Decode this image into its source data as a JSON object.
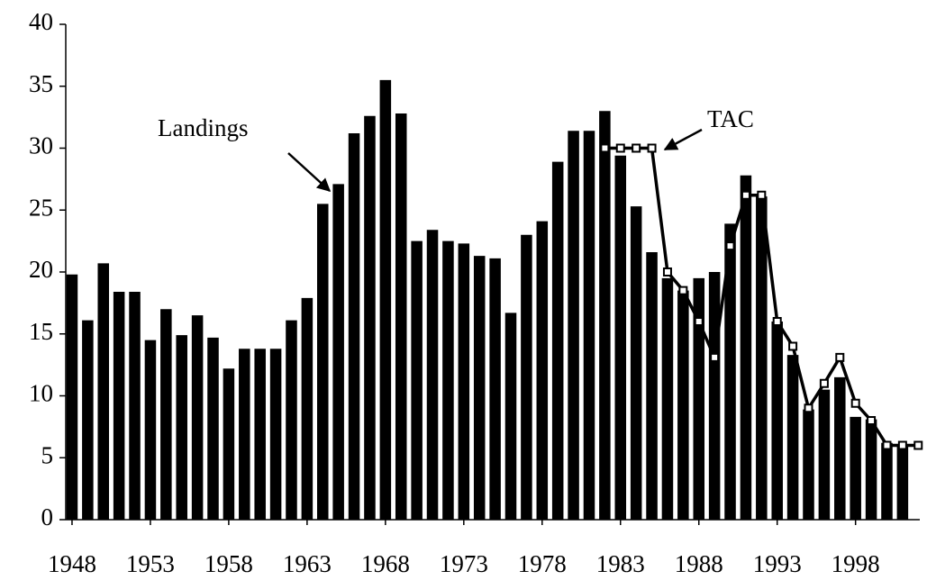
{
  "chart_data": {
    "type": "bar",
    "x": [
      1948,
      1949,
      1950,
      1951,
      1952,
      1953,
      1954,
      1955,
      1956,
      1957,
      1958,
      1959,
      1960,
      1961,
      1962,
      1963,
      1964,
      1965,
      1966,
      1967,
      1968,
      1969,
      1970,
      1971,
      1972,
      1973,
      1974,
      1975,
      1976,
      1977,
      1978,
      1979,
      1980,
      1981,
      1982,
      1983,
      1984,
      1985,
      1986,
      1987,
      1988,
      1989,
      1990,
      1991,
      1992,
      1993,
      1994,
      1995,
      1996,
      1997,
      1998,
      1999,
      2000,
      2001,
      2002
    ],
    "series": [
      {
        "name": "Landings",
        "type": "bar",
        "color": "#000000",
        "values": [
          19.8,
          16.1,
          20.7,
          18.4,
          18.4,
          14.5,
          17.0,
          14.9,
          16.5,
          14.7,
          12.2,
          13.8,
          13.8,
          13.8,
          16.1,
          17.9,
          25.5,
          27.1,
          31.2,
          32.6,
          35.5,
          32.8,
          22.5,
          23.4,
          22.5,
          22.3,
          21.3,
          21.1,
          16.7,
          23.0,
          24.1,
          28.9,
          31.4,
          31.4,
          33.0,
          29.4,
          25.3,
          21.6,
          19.5,
          18.5,
          19.5,
          20.0,
          23.9,
          27.8,
          26.1,
          16.0,
          13.3,
          8.9,
          10.5,
          11.5,
          8.3,
          8.1,
          6.2,
          6.0,
          null
        ]
      },
      {
        "name": "TAC",
        "type": "line",
        "color": "#000000",
        "values": [
          null,
          null,
          null,
          null,
          null,
          null,
          null,
          null,
          null,
          null,
          null,
          null,
          null,
          null,
          null,
          null,
          null,
          null,
          null,
          null,
          null,
          null,
          null,
          null,
          null,
          null,
          null,
          null,
          null,
          null,
          null,
          null,
          null,
          null,
          30,
          30,
          30,
          30,
          20,
          18.5,
          16,
          13.1,
          22.1,
          26.2,
          26.2,
          16.0,
          14.0,
          9.0,
          11.0,
          13.1,
          9.4,
          8.0,
          6.0,
          6.0,
          6.0
        ]
      }
    ],
    "xlim": [
      1947.6,
      2002.1
    ],
    "xticks": [
      1948,
      1953,
      1958,
      1963,
      1968,
      1973,
      1978,
      1983,
      1988,
      1993,
      1998
    ],
    "ylim": [
      0,
      40
    ],
    "yticks": [
      0,
      5,
      10,
      15,
      20,
      25,
      30,
      35,
      40
    ],
    "annotations": [
      {
        "text": "Landings"
      },
      {
        "text": "TAC"
      }
    ]
  }
}
